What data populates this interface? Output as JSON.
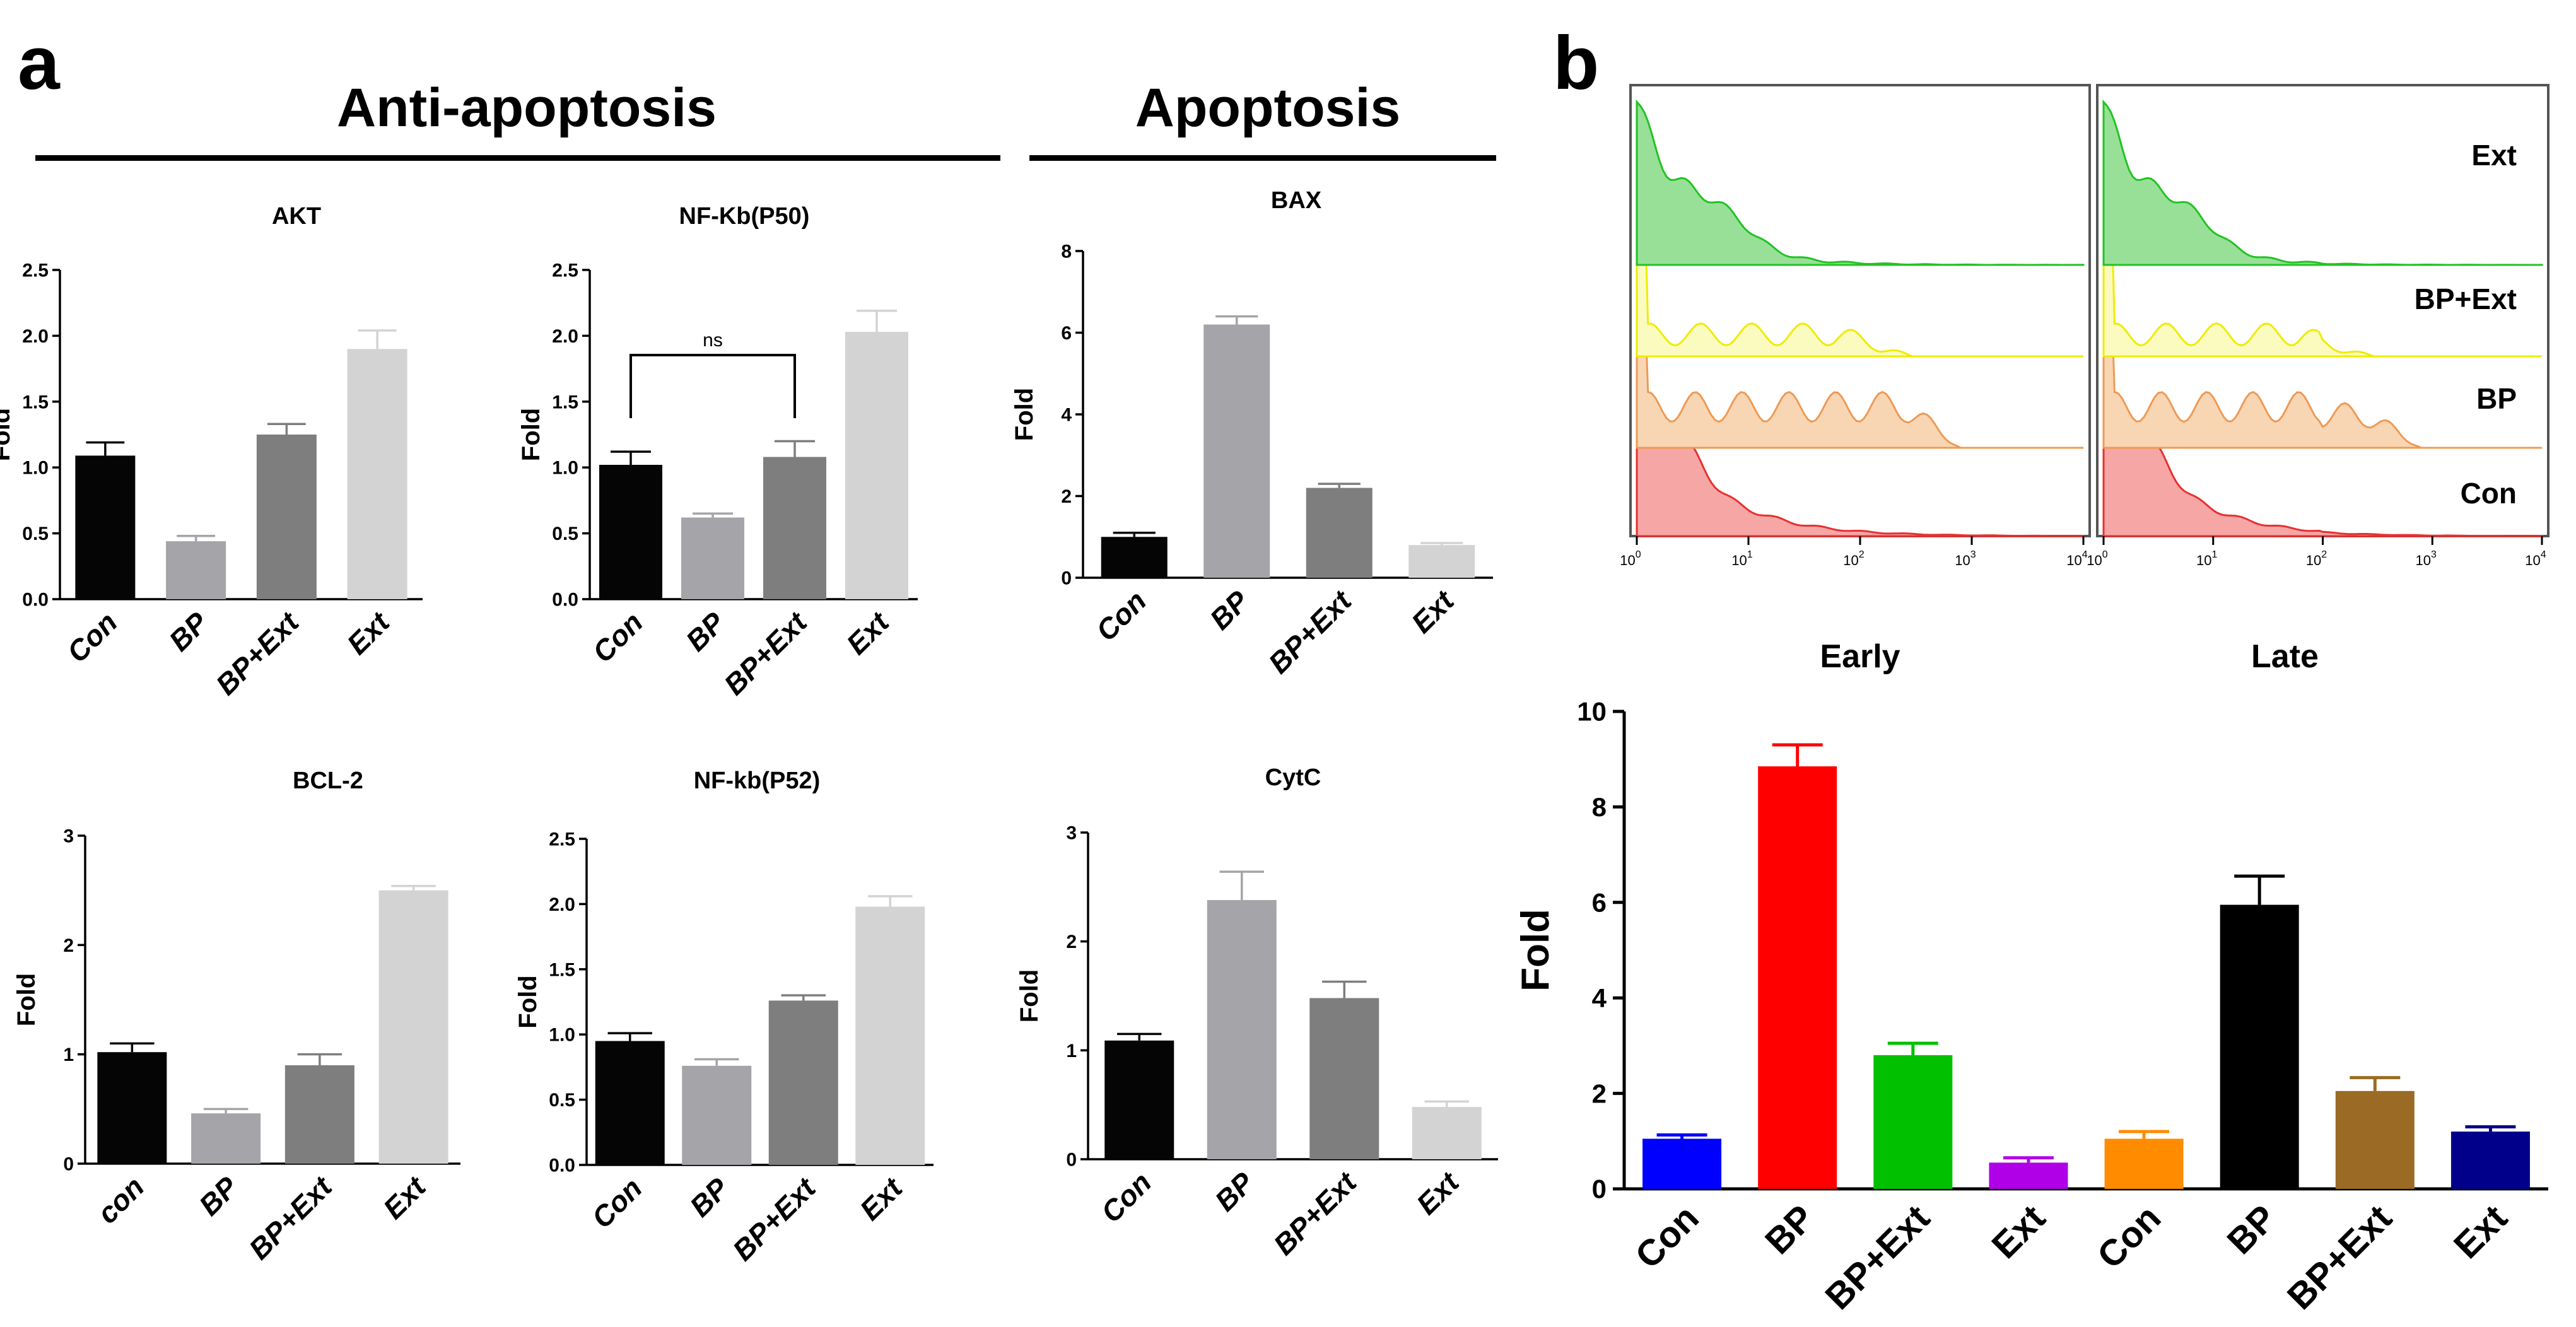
{
  "panel_labels": {
    "a": "a",
    "b": "b"
  },
  "sections": {
    "anti": "Anti-apoptosis",
    "apo": "Apoptosis"
  },
  "colors": {
    "c1": "#050505",
    "c2": "#a4a4a9",
    "c3": "#7e7e7e",
    "c4": "#d3d3d3"
  },
  "chart_data": [
    {
      "id": "akt",
      "type": "bar",
      "title": "AKT",
      "ylabel": "Fold",
      "categories": [
        "Con",
        "BP",
        "BP+Ext",
        "Ext"
      ],
      "values": [
        1.09,
        0.44,
        1.25,
        1.9
      ],
      "errors": [
        0.1,
        0.04,
        0.08,
        0.14
      ],
      "ylim": [
        0,
        2.5
      ],
      "yticks": [
        "0.0",
        "0.5",
        "1.0",
        "1.5",
        "2.0",
        "2.5"
      ]
    },
    {
      "id": "nfkb50",
      "type": "bar",
      "title": "NF-Kb(P50)",
      "ylabel": "Fold",
      "categories": [
        "Con",
        "BP",
        "BP+Ext",
        "Ext"
      ],
      "values": [
        1.02,
        0.62,
        1.08,
        2.03
      ],
      "errors": [
        0.1,
        0.03,
        0.12,
        0.16
      ],
      "ylim": [
        0,
        2.5
      ],
      "yticks": [
        "0.0",
        "0.5",
        "1.0",
        "1.5",
        "2.0",
        "2.5"
      ],
      "annotation": "ns"
    },
    {
      "id": "bax",
      "type": "bar",
      "title": "BAX",
      "ylabel": "Fold",
      "categories": [
        "Con",
        "BP",
        "BP+Ext",
        "Ext"
      ],
      "values": [
        1.0,
        6.2,
        2.2,
        0.8
      ],
      "errors": [
        0.1,
        0.2,
        0.1,
        0.05
      ],
      "ylim": [
        0,
        8
      ],
      "yticks": [
        "0",
        "2",
        "4",
        "6",
        "8"
      ]
    },
    {
      "id": "bcl2",
      "type": "bar",
      "title": "BCL-2",
      "ylabel": "Fold",
      "categories": [
        "con",
        "BP",
        "BP+Ext",
        "Ext"
      ],
      "values": [
        1.02,
        0.46,
        0.9,
        2.5
      ],
      "errors": [
        0.08,
        0.04,
        0.1,
        0.04
      ],
      "ylim": [
        0,
        3
      ],
      "yticks": [
        "0",
        "1",
        "2",
        "3"
      ]
    },
    {
      "id": "nfkb52",
      "type": "bar",
      "title": "NF-kb(P52)",
      "ylabel": "Fold",
      "categories": [
        "Con",
        "BP",
        "BP+Ext",
        "Ext"
      ],
      "values": [
        0.95,
        0.76,
        1.26,
        1.98
      ],
      "errors": [
        0.06,
        0.05,
        0.04,
        0.08
      ],
      "ylim": [
        0,
        2.5
      ],
      "yticks": [
        "0.0",
        "0.5",
        "1.0",
        "1.5",
        "2.0",
        "2.5"
      ]
    },
    {
      "id": "cytc",
      "type": "bar",
      "title": "CytC",
      "ylabel": "Fold",
      "categories": [
        "Con",
        "BP",
        "BP+Ext",
        "Ext"
      ],
      "values": [
        1.09,
        2.38,
        1.48,
        0.48
      ],
      "errors": [
        0.06,
        0.26,
        0.15,
        0.05
      ],
      "ylim": [
        0,
        3
      ],
      "yticks": [
        "0",
        "1",
        "2",
        "3"
      ]
    },
    {
      "id": "flow-bars",
      "type": "bar",
      "title": "",
      "ylabel": "Fold",
      "categories": [
        "Con",
        "BP",
        "BP+Ext",
        "Ext",
        "Con",
        "BP",
        "BP+Ext",
        "Ext"
      ],
      "values": [
        1.05,
        8.85,
        2.8,
        0.55,
        1.05,
        5.95,
        2.05,
        1.2
      ],
      "errors": [
        0.08,
        0.45,
        0.25,
        0.1,
        0.15,
        0.6,
        0.28,
        0.1
      ],
      "colors": [
        "#0000ff",
        "#ff0000",
        "#00c000",
        "#b000e8",
        "#ff8c00",
        "#000000",
        "#9b6a24",
        "#00008b"
      ],
      "ylim": [
        0,
        10
      ],
      "yticks": [
        "0",
        "2",
        "4",
        "6",
        "8",
        "10"
      ]
    }
  ],
  "flow": {
    "labels": [
      "Ext",
      "BP+Ext",
      "BP",
      "Con"
    ],
    "colors": [
      "#22c322",
      "#eded00",
      "#ee9a55",
      "#e83030"
    ],
    "fills": [
      "#98e098",
      "#fbfbbf",
      "#f8d6b4",
      "#f7a6a6"
    ],
    "xticks": [
      "10",
      "10",
      "10",
      "10",
      "10"
    ],
    "xtick_exps": [
      "0",
      "1",
      "2",
      "3",
      "4"
    ],
    "panel_titles": [
      "Early",
      "Late"
    ]
  }
}
